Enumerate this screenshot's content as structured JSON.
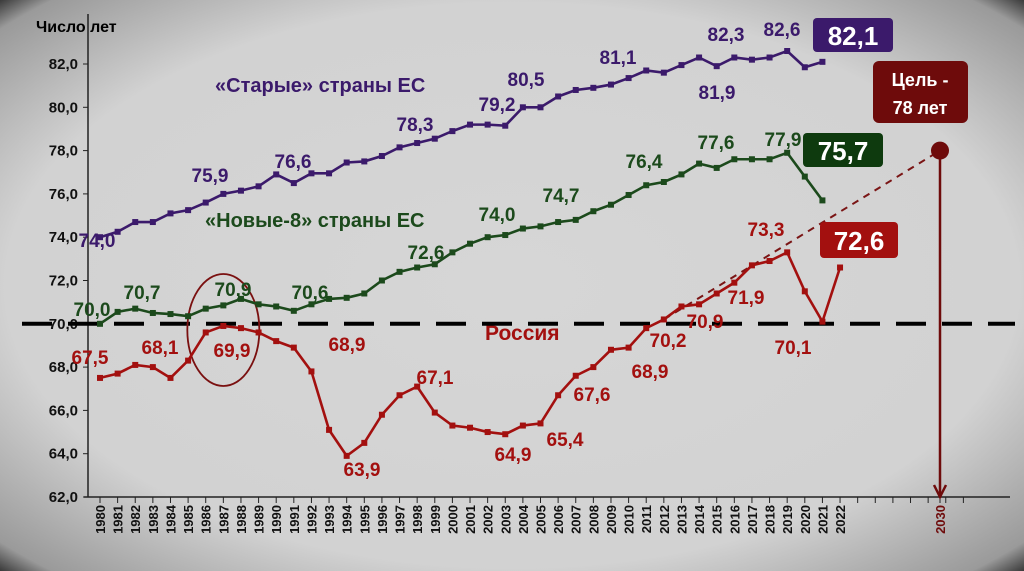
{
  "chart_data": {
    "type": "line",
    "ylabel": "Число лет",
    "ylim": [
      62,
      82
    ],
    "yticks": [
      "62,0",
      "64,0",
      "66,0",
      "68,0",
      "70,0",
      "72,0",
      "74,0",
      "76,0",
      "78,0",
      "80,0",
      "82,0"
    ],
    "x": [
      1980,
      1981,
      1982,
      1983,
      1984,
      1985,
      1986,
      1987,
      1988,
      1989,
      1990,
      1991,
      1992,
      1993,
      1994,
      1995,
      1996,
      1997,
      1998,
      1999,
      2000,
      2001,
      2002,
      2003,
      2004,
      2005,
      2006,
      2007,
      2008,
      2009,
      2010,
      2011,
      2012,
      2013,
      2014,
      2015,
      2016,
      2017,
      2018,
      2019,
      2020,
      2021,
      2022
    ],
    "extra_xtick": "2030",
    "grid": false,
    "series": [
      {
        "name": "«Старые» страны ЕС",
        "color": "#3b1a6b",
        "values": [
          74.0,
          74.25,
          74.7,
          74.7,
          75.1,
          75.25,
          75.6,
          76.0,
          76.15,
          76.35,
          76.9,
          76.5,
          76.95,
          76.95,
          77.45,
          77.5,
          77.75,
          78.15,
          78.35,
          78.55,
          78.9,
          79.2,
          79.2,
          79.15,
          80.0,
          80.0,
          80.5,
          80.8,
          80.9,
          81.05,
          81.35,
          81.7,
          81.6,
          81.95,
          82.3,
          81.9,
          82.3,
          82.2,
          82.3,
          82.6,
          81.85,
          82.1,
          null
        ],
        "final_label": "82,1"
      },
      {
        "name": "«Новые-8» страны ЕС",
        "color": "#1c4a1c",
        "values": [
          70.0,
          70.55,
          70.7,
          70.5,
          70.45,
          70.35,
          70.7,
          70.85,
          71.15,
          70.9,
          70.8,
          70.6,
          70.9,
          71.15,
          71.2,
          71.4,
          72.0,
          72.4,
          72.6,
          72.75,
          73.3,
          73.7,
          74.0,
          74.1,
          74.4,
          74.5,
          74.7,
          74.8,
          75.2,
          75.5,
          75.95,
          76.4,
          76.55,
          76.9,
          77.4,
          77.2,
          77.6,
          77.6,
          77.6,
          77.9,
          76.8,
          75.7,
          null
        ],
        "final_label": "75,7"
      },
      {
        "name": "Россия",
        "color": "#a3100f",
        "values": [
          67.5,
          67.7,
          68.1,
          68.0,
          67.5,
          68.3,
          69.6,
          69.9,
          69.8,
          69.6,
          69.2,
          68.9,
          67.8,
          65.1,
          63.9,
          64.5,
          65.8,
          66.7,
          67.1,
          65.9,
          65.3,
          65.2,
          65.0,
          64.9,
          65.3,
          65.4,
          66.7,
          67.6,
          68.0,
          68.8,
          68.9,
          69.8,
          70.2,
          70.8,
          70.9,
          71.4,
          71.9,
          72.7,
          72.9,
          73.3,
          71.5,
          70.1,
          72.6
        ],
        "final_label": "72,6"
      }
    ],
    "annotations": [
      {
        "series": 0,
        "text": "74,0"
      },
      {
        "series": 0,
        "text": "75,9"
      },
      {
        "series": 0,
        "text": "76,6"
      },
      {
        "series": 0,
        "text": "78,3"
      },
      {
        "series": 0,
        "text": "79,2"
      },
      {
        "series": 0,
        "text": "80,5"
      },
      {
        "series": 0,
        "text": "81,1"
      },
      {
        "series": 0,
        "text": "82,3"
      },
      {
        "series": 0,
        "text": "81,9"
      },
      {
        "series": 0,
        "text": "82,6"
      },
      {
        "series": 1,
        "text": "70,0"
      },
      {
        "series": 1,
        "text": "70,7"
      },
      {
        "series": 1,
        "text": "70,9"
      },
      {
        "series": 1,
        "text": "70,6"
      },
      {
        "series": 1,
        "text": "72,6"
      },
      {
        "series": 1,
        "text": "74,0"
      },
      {
        "series": 1,
        "text": "74,7"
      },
      {
        "series": 1,
        "text": "76,4"
      },
      {
        "series": 1,
        "text": "77,6"
      },
      {
        "series": 1,
        "text": "77,9"
      },
      {
        "series": 2,
        "text": "67,5"
      },
      {
        "series": 2,
        "text": "68,1"
      },
      {
        "series": 2,
        "text": "69,9"
      },
      {
        "series": 2,
        "text": "68,9"
      },
      {
        "series": 2,
        "text": "63,9"
      },
      {
        "series": 2,
        "text": "67,1"
      },
      {
        "series": 2,
        "text": "64,9"
      },
      {
        "series": 2,
        "text": "65,4"
      },
      {
        "series": 2,
        "text": "67,6"
      },
      {
        "series": 2,
        "text": "68,9"
      },
      {
        "series": 2,
        "text": "70,2"
      },
      {
        "series": 2,
        "text": "70,9"
      },
      {
        "series": 2,
        "text": "71,9"
      },
      {
        "series": 2,
        "text": "73,3"
      },
      {
        "series": 2,
        "text": "70,1"
      }
    ],
    "reference_line": {
      "value": 70,
      "style": "dashed",
      "color": "#000000"
    },
    "target": {
      "label_line1": "Цель -",
      "label_line2": "78 лет",
      "year": 2030,
      "value": 78,
      "from_year": 2012,
      "from_value": 70.2,
      "color": "#6e0b0b"
    },
    "highlight": {
      "shape": "ellipse",
      "year": 1987
    }
  }
}
